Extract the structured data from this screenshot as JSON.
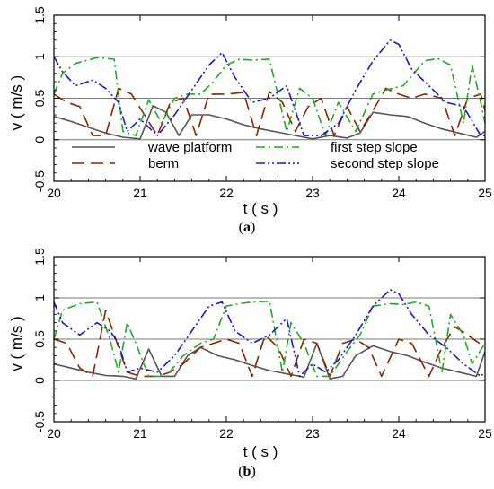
{
  "chart_data": [
    {
      "type": "line",
      "panel_label": "(a)",
      "xlabel": "t ( s )",
      "ylabel": "v ( m/s )",
      "xlim": [
        20,
        25
      ],
      "ylim": [
        -0.5,
        1.5
      ],
      "xticks": [
        "20",
        "21",
        "22",
        "23",
        "24",
        "25"
      ],
      "yticks": [
        "-0.5",
        "0",
        "0.5",
        "1",
        "1.5"
      ],
      "gridlines_y": [
        0,
        0.5,
        1
      ],
      "legend": {
        "placement": "lower-center",
        "entries": [
          "wave platform",
          "berm",
          "first step slope",
          "second step slope"
        ]
      },
      "series": [
        {
          "name": "wave platform",
          "color": "#555555",
          "dash": "solid",
          "x": [
            20.0,
            20.2,
            20.4,
            20.6,
            20.8,
            21.0,
            21.15,
            21.3,
            21.45,
            21.6,
            21.8,
            22.0,
            22.2,
            22.4,
            22.6,
            22.8,
            23.0,
            23.2,
            23.4,
            23.55,
            23.7,
            23.9,
            24.1,
            24.3,
            24.5,
            24.7,
            24.9,
            25.0
          ],
          "y": [
            0.28,
            0.22,
            0.15,
            0.08,
            0.03,
            0.01,
            0.41,
            0.33,
            0.05,
            0.3,
            0.3,
            0.25,
            0.18,
            0.13,
            0.09,
            0.05,
            0.01,
            0.05,
            0.02,
            0.08,
            0.33,
            0.3,
            0.28,
            0.2,
            0.13,
            0.08,
            0.03,
            0.1
          ]
        },
        {
          "name": "berm",
          "color": "#8b2500",
          "dash": "long-dash",
          "x": [
            20.0,
            20.15,
            20.3,
            20.45,
            20.6,
            20.75,
            20.9,
            21.05,
            21.2,
            21.35,
            21.5,
            21.65,
            21.8,
            22.0,
            22.2,
            22.35,
            22.5,
            22.65,
            22.8,
            22.95,
            23.1,
            23.25,
            23.4,
            23.55,
            23.7,
            23.85,
            24.0,
            24.15,
            24.3,
            24.5,
            24.65,
            24.8,
            24.95,
            25.0
          ],
          "y": [
            0.55,
            0.45,
            0.4,
            0.05,
            0.05,
            0.62,
            0.55,
            0.3,
            0.05,
            0.45,
            0.5,
            0.05,
            0.55,
            0.55,
            0.57,
            0.05,
            0.58,
            0.45,
            0.1,
            0.4,
            0.5,
            0.05,
            0.4,
            0.1,
            0.35,
            0.62,
            0.55,
            0.5,
            0.55,
            0.5,
            0.05,
            0.5,
            0.55,
            0.35
          ]
        },
        {
          "name": "first step slope",
          "color": "#22aa22",
          "dash": "dash-dot",
          "x": [
            20.0,
            20.1,
            20.25,
            20.5,
            20.7,
            20.8,
            20.95,
            21.1,
            21.25,
            21.4,
            21.55,
            21.7,
            21.85,
            22.0,
            22.15,
            22.3,
            22.5,
            22.7,
            22.85,
            23.0,
            23.15,
            23.3,
            23.5,
            23.7,
            23.85,
            24.05,
            24.3,
            24.45,
            24.6,
            24.75,
            24.85,
            24.95,
            25.0
          ],
          "y": [
            0.55,
            0.8,
            0.92,
            0.99,
            0.97,
            0.1,
            0.05,
            0.48,
            0.2,
            0.5,
            0.55,
            0.55,
            0.7,
            0.9,
            0.97,
            0.96,
            0.97,
            0.1,
            0.62,
            0.5,
            0.05,
            0.45,
            0.1,
            0.55,
            0.6,
            0.65,
            0.95,
            0.98,
            0.9,
            0.2,
            0.9,
            0.45,
            0.2
          ]
        },
        {
          "name": "second step slope",
          "color": "#1a1acc",
          "dash": "dash-dot-dot",
          "x": [
            20.0,
            20.1,
            20.25,
            20.45,
            20.6,
            20.75,
            20.85,
            21.0,
            21.2,
            21.4,
            21.6,
            21.8,
            21.95,
            22.1,
            22.3,
            22.5,
            22.7,
            22.9,
            23.1,
            23.3,
            23.5,
            23.7,
            23.9,
            24.0,
            24.15,
            24.35,
            24.55,
            24.75,
            24.95,
            25.0
          ],
          "y": [
            1.0,
            0.82,
            0.65,
            0.72,
            0.62,
            0.45,
            0.1,
            0.25,
            0.05,
            0.3,
            0.6,
            0.9,
            1.05,
            0.75,
            0.45,
            0.5,
            0.65,
            0.05,
            0.05,
            0.2,
            0.6,
            0.95,
            1.2,
            1.15,
            0.85,
            0.65,
            0.45,
            0.4,
            0.05,
            0.05
          ]
        }
      ]
    },
    {
      "type": "line",
      "panel_label": "(b)",
      "xlabel": "t ( s )",
      "ylabel": "v ( m/s )",
      "xlim": [
        20,
        25
      ],
      "ylim": [
        -0.5,
        1.5
      ],
      "xticks": [
        "20",
        "21",
        "22",
        "23",
        "24",
        "25"
      ],
      "yticks": [
        "-0.5",
        "0",
        "0.5",
        "1",
        "1.5"
      ],
      "gridlines_y": [
        0,
        0.5,
        1
      ],
      "series": [
        {
          "name": "wave platform",
          "color": "#555555",
          "dash": "solid",
          "x": [
            20.0,
            20.2,
            20.4,
            20.6,
            20.8,
            20.95,
            21.1,
            21.25,
            21.4,
            21.55,
            21.7,
            21.9,
            22.1,
            22.3,
            22.5,
            22.7,
            22.9,
            23.05,
            23.2,
            23.35,
            23.5,
            23.7,
            23.9,
            24.1,
            24.3,
            24.5,
            24.7,
            24.9,
            25.0
          ],
          "y": [
            0.2,
            0.15,
            0.1,
            0.06,
            0.05,
            0.02,
            0.38,
            0.05,
            0.05,
            0.3,
            0.4,
            0.3,
            0.25,
            0.18,
            0.12,
            0.08,
            0.04,
            0.45,
            0.02,
            0.05,
            0.3,
            0.42,
            0.35,
            0.3,
            0.22,
            0.15,
            0.1,
            0.05,
            0.35
          ]
        },
        {
          "name": "berm",
          "color": "#8b2500",
          "dash": "long-dash",
          "x": [
            20.0,
            20.15,
            20.3,
            20.45,
            20.6,
            20.75,
            20.85,
            21.0,
            21.2,
            21.35,
            21.5,
            21.7,
            21.85,
            22.0,
            22.15,
            22.3,
            22.45,
            22.6,
            22.75,
            22.9,
            23.05,
            23.2,
            23.35,
            23.5,
            23.65,
            23.8,
            24.0,
            24.15,
            24.35,
            24.5,
            24.65,
            24.8,
            25.0
          ],
          "y": [
            0.5,
            0.45,
            0.15,
            0.05,
            0.85,
            0.4,
            0.1,
            0.05,
            0.05,
            0.1,
            0.2,
            0.4,
            0.45,
            0.5,
            0.45,
            0.05,
            0.55,
            0.4,
            0.05,
            0.5,
            0.45,
            0.05,
            0.45,
            0.5,
            0.4,
            0.05,
            0.5,
            0.45,
            0.05,
            0.4,
            0.65,
            0.55,
            0.4
          ]
        },
        {
          "name": "first step slope",
          "color": "#22aa22",
          "dash": "dash-dot",
          "x": [
            20.0,
            20.1,
            20.3,
            20.5,
            20.65,
            20.75,
            20.85,
            20.95,
            21.1,
            21.3,
            21.5,
            21.7,
            21.85,
            22.0,
            22.15,
            22.3,
            22.5,
            22.65,
            22.75,
            22.9,
            23.05,
            23.2,
            23.4,
            23.55,
            23.7,
            23.9,
            24.05,
            24.2,
            24.35,
            24.5,
            24.6,
            24.75,
            24.85,
            25.0
          ],
          "y": [
            0.5,
            0.85,
            0.93,
            0.95,
            0.5,
            0.1,
            0.7,
            0.45,
            0.05,
            0.05,
            0.3,
            0.45,
            0.5,
            0.9,
            0.93,
            0.95,
            0.96,
            0.1,
            0.7,
            0.45,
            0.05,
            0.05,
            0.35,
            0.55,
            0.9,
            0.93,
            0.92,
            0.95,
            0.9,
            0.1,
            0.8,
            0.55,
            0.2,
            0.45
          ]
        },
        {
          "name": "second step slope",
          "color": "#1a1acc",
          "dash": "dash-dot-dot",
          "x": [
            20.0,
            20.1,
            20.3,
            20.5,
            20.65,
            20.75,
            20.85,
            21.0,
            21.2,
            21.4,
            21.6,
            21.8,
            21.95,
            22.1,
            22.3,
            22.5,
            22.7,
            22.85,
            23.0,
            23.15,
            23.3,
            23.5,
            23.7,
            23.9,
            24.0,
            24.15,
            24.35,
            24.55,
            24.75,
            24.95,
            25.0
          ],
          "y": [
            0.95,
            0.7,
            0.55,
            0.7,
            0.6,
            0.45,
            0.1,
            0.15,
            0.1,
            0.3,
            0.6,
            0.9,
            0.95,
            0.6,
            0.45,
            0.55,
            0.75,
            0.05,
            0.2,
            0.1,
            0.25,
            0.55,
            0.9,
            1.1,
            1.05,
            0.8,
            0.55,
            0.4,
            0.2,
            0.05,
            0.1
          ]
        }
      ]
    }
  ]
}
